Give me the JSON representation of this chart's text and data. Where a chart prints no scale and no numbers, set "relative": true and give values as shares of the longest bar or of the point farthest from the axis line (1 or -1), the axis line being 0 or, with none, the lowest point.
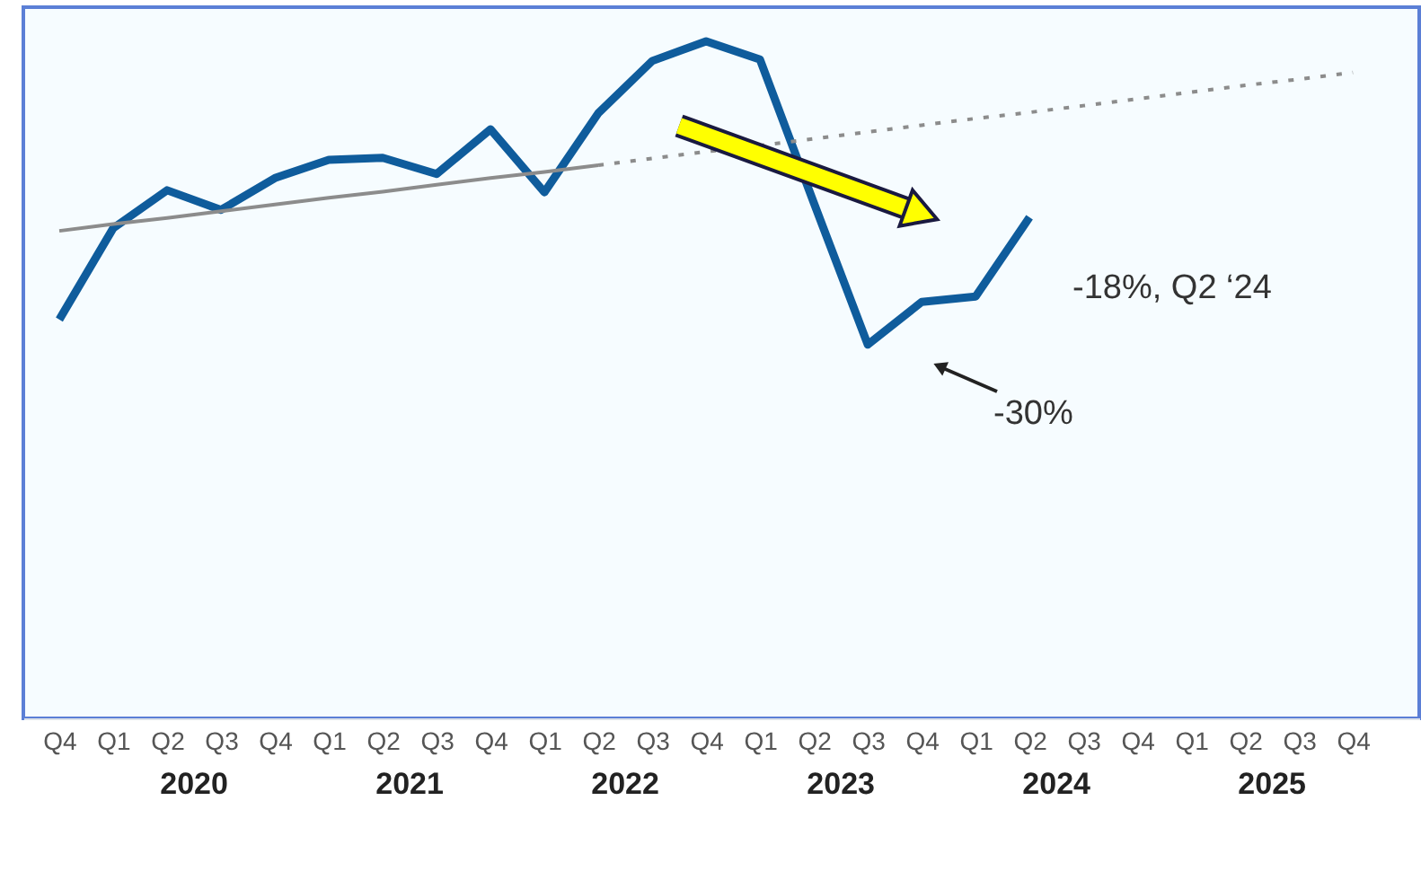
{
  "chart_data": {
    "type": "line",
    "relative": true,
    "marker": "none",
    "grid": false,
    "categories": [
      "Q4",
      "Q1",
      "Q2",
      "Q3",
      "Q4",
      "Q1",
      "Q2",
      "Q3",
      "Q4",
      "Q1",
      "Q2",
      "Q3",
      "Q4",
      "Q1",
      "Q2",
      "Q3",
      "Q4",
      "Q1",
      "Q2",
      "Q3",
      "Q4",
      "Q1",
      "Q2",
      "Q3",
      "Q4"
    ],
    "series": [
      {
        "color": "#0f5c9c",
        "line_style": "solid",
        "values": [
          0.589,
          0.724,
          0.78,
          0.751,
          0.798,
          0.825,
          0.828,
          0.804,
          0.87,
          0.777,
          0.894,
          0.971,
          1,
          0.973,
          0.761,
          0.552,
          0.615,
          0.623,
          0.74,
          null,
          null,
          null,
          null,
          null,
          null
        ]
      },
      {
        "color": "#8c8c8c",
        "line_style": "solid",
        "values": [
          0.72,
          0.73,
          0.739,
          0.749,
          0.759,
          0.769,
          0.778,
          0.788,
          0.798,
          0.807,
          0.817,
          null,
          null,
          null,
          null,
          null,
          null,
          null,
          null,
          null,
          null,
          null,
          null,
          null,
          null
        ]
      },
      {
        "color": "#8c8c8c",
        "line_style": "dotted",
        "values": [
          null,
          null,
          null,
          null,
          null,
          null,
          null,
          null,
          null,
          null,
          0.817,
          0.827,
          0.837,
          0.846,
          0.856,
          0.866,
          0.876,
          0.886,
          0.895,
          0.905,
          0.915,
          0.925,
          0.935,
          0.944,
          0.954
        ]
      }
    ],
    "annotations": [
      "2020",
      "2021",
      "2022",
      "2023",
      "2024",
      "2025",
      "-18%, Q2 ‘24",
      "-30%"
    ]
  }
}
